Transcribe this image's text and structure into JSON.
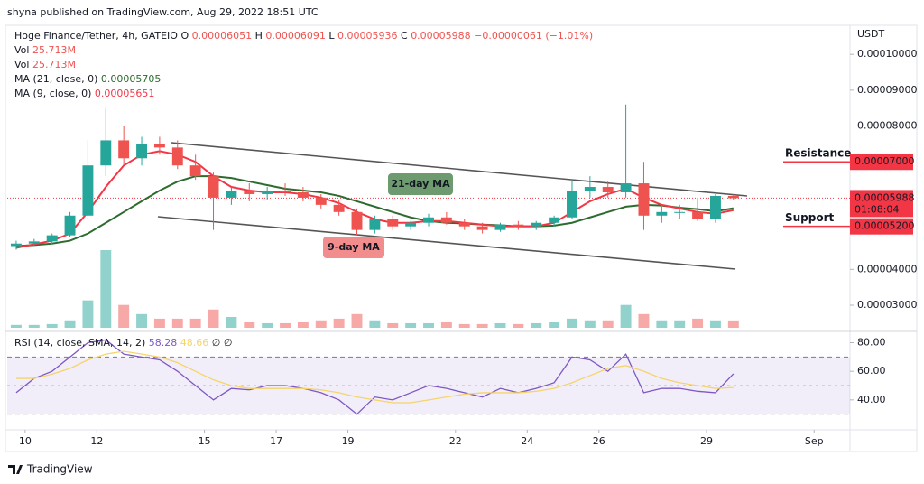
{
  "header": {
    "publisher": "shyna published on TradingView.com, Aug 29, 2022 18:51 UTC"
  },
  "footer": {
    "brand": "TradingView"
  },
  "chart_data": {
    "type": "candlestick",
    "symbol": "Hoge Finance/Tether, 4h, GATEIO",
    "ohlc_legend": [
      {
        "key": "O",
        "text": "0.00006051"
      },
      {
        "key": "H",
        "text": "0.00006091"
      },
      {
        "key": "L",
        "text": "0.00005936"
      },
      {
        "key": "C",
        "text": "0.00005988"
      }
    ],
    "change": "−0.00000061 (−1.01%)",
    "axis_unit": "USDT",
    "up_color": "#26a69a",
    "down_color": "#ef5350",
    "x": [
      9.75,
      10.25,
      10.75,
      11.25,
      11.75,
      12.25,
      12.75,
      13.25,
      13.75,
      14.25,
      14.75,
      15.25,
      15.75,
      16.25,
      16.75,
      17.25,
      17.75,
      18.25,
      18.75,
      19.25,
      19.75,
      20.25,
      20.75,
      21.25,
      21.75,
      22.25,
      22.75,
      23.25,
      23.75,
      24.25,
      24.75,
      25.25,
      25.75,
      26.25,
      26.75,
      27.25,
      27.75,
      28.25,
      28.75,
      29.25,
      29.75
    ],
    "open": [
      4.65e-05,
      4.72e-05,
      4.78e-05,
      4.95e-05,
      5.5e-05,
      6.9e-05,
      7.6e-05,
      7.1e-05,
      7.5e-05,
      7.4e-05,
      6.9e-05,
      6.6e-05,
      6e-05,
      6.2e-05,
      6.1e-05,
      6.2e-05,
      6.15e-05,
      6e-05,
      5.8e-05,
      5.6e-05,
      5.1e-05,
      5.4e-05,
      5.2e-05,
      5.3e-05,
      5.45e-05,
      5.3e-05,
      5.2e-05,
      5.1e-05,
      5.25e-05,
      5.2e-05,
      5.3e-05,
      5.45e-05,
      6.2e-05,
      6.3e-05,
      6.15e-05,
      6.4e-05,
      5.5e-05,
      5.6e-05,
      5.6e-05,
      5.4e-05,
      6.051e-05
    ],
    "high": [
      4.8e-05,
      4.85e-05,
      5e-05,
      5.6e-05,
      7.6e-05,
      8.5e-05,
      8e-05,
      7.7e-05,
      7.7e-05,
      7.6e-05,
      7.2e-05,
      6.7e-05,
      6.3e-05,
      6.4e-05,
      6.3e-05,
      6.4e-05,
      6.3e-05,
      6.1e-05,
      5.95e-05,
      5.7e-05,
      5.5e-05,
      5.5e-05,
      5.35e-05,
      5.55e-05,
      5.6e-05,
      5.4e-05,
      5.3e-05,
      5.3e-05,
      5.35e-05,
      5.35e-05,
      5.5e-05,
      6.5e-05,
      6.6e-05,
      6.45e-05,
      8.6e-05,
      7e-05,
      5.8e-05,
      5.8e-05,
      6e-05,
      6.1e-05,
      6.091e-05
    ],
    "low": [
      4.55e-05,
      4.65e-05,
      4.7e-05,
      4.9e-05,
      5.4e-05,
      6.6e-05,
      6.9e-05,
      6.9e-05,
      7.2e-05,
      6.8e-05,
      6.5e-05,
      5.1e-05,
      5.8e-05,
      5.9e-05,
      5.95e-05,
      6.05e-05,
      5.9e-05,
      5.7e-05,
      5.5e-05,
      4.95e-05,
      5e-05,
      5.1e-05,
      5.1e-05,
      5.2e-05,
      5.25e-05,
      5.1e-05,
      5e-05,
      5.05e-05,
      5.1e-05,
      5.1e-05,
      5.2e-05,
      5.4e-05,
      6e-05,
      6e-05,
      6e-05,
      5.1e-05,
      5.3e-05,
      5.4e-05,
      5.35e-05,
      5.3e-05,
      5.936e-05
    ],
    "close": [
      4.72e-05,
      4.78e-05,
      4.95e-05,
      5.5e-05,
      6.9e-05,
      7.6e-05,
      7.1e-05,
      7.5e-05,
      7.4e-05,
      6.9e-05,
      6.6e-05,
      6e-05,
      6.2e-05,
      6.1e-05,
      6.2e-05,
      6.15e-05,
      6e-05,
      5.8e-05,
      5.6e-05,
      5.1e-05,
      5.4e-05,
      5.2e-05,
      5.3e-05,
      5.45e-05,
      5.3e-05,
      5.2e-05,
      5.1e-05,
      5.25e-05,
      5.2e-05,
      5.3e-05,
      5.45e-05,
      6.2e-05,
      6.3e-05,
      6.15e-05,
      6.4e-05,
      5.5e-05,
      5.6e-05,
      5.6e-05,
      5.4e-05,
      6.05e-05,
      5.988e-05
    ],
    "xlim": [
      9.5,
      33
    ],
    "xticks": [
      10,
      12,
      15,
      17,
      19,
      22,
      24,
      26,
      29,
      {
        "value": 32,
        "label": "Sep"
      }
    ],
    "ylim": [
      2.32e-05,
      0.0001076
    ],
    "yticks": [
      {
        "value": 0.0001,
        "label": "0.00010000"
      },
      {
        "value": 9e-05,
        "label": "0.00009000"
      },
      {
        "value": 8e-05,
        "label": "0.00008000"
      },
      {
        "value": 4e-05,
        "label": "0.00004000"
      },
      {
        "value": 3e-05,
        "label": "0.00003000"
      }
    ],
    "last_price": {
      "value": 5.988e-05,
      "label": "0.00005988",
      "countdown": "01:08:04",
      "color": "#f23645"
    },
    "levels": [
      {
        "name": "Resistance",
        "value": 7e-05,
        "label": "0.00007000",
        "color": "#f23645"
      },
      {
        "name": "Support",
        "value": 5.2e-05,
        "label": "0.00005200",
        "color": "#089981"
      }
    ],
    "series": [
      {
        "name": "MA (21, close, 0)",
        "legend_value": "0.00005705",
        "color": "#2e6b2f",
        "values": [
          4.65e-05,
          4.68e-05,
          4.72e-05,
          4.8e-05,
          5e-05,
          5.3e-05,
          5.6e-05,
          5.9e-05,
          6.2e-05,
          6.45e-05,
          6.6e-05,
          6.6e-05,
          6.55e-05,
          6.45e-05,
          6.35e-05,
          6.25e-05,
          6.2e-05,
          6.15e-05,
          6.05e-05,
          5.9e-05,
          5.75e-05,
          5.6e-05,
          5.45e-05,
          5.35e-05,
          5.3e-05,
          5.28e-05,
          5.25e-05,
          5.23e-05,
          5.2e-05,
          5.2e-05,
          5.22e-05,
          5.3e-05,
          5.45e-05,
          5.6e-05,
          5.75e-05,
          5.8e-05,
          5.78e-05,
          5.72e-05,
          5.68e-05,
          5.62e-05,
          5.705e-05
        ]
      },
      {
        "name": "MA (9, close, 0)",
        "legend_value": "0.00005651",
        "color": "#f23645",
        "values": [
          4.6e-05,
          4.7e-05,
          4.8e-05,
          5e-05,
          5.6e-05,
          6.3e-05,
          6.9e-05,
          7.2e-05,
          7.3e-05,
          7.2e-05,
          7e-05,
          6.6e-05,
          6.3e-05,
          6.2e-05,
          6.15e-05,
          6.15e-05,
          6.1e-05,
          6e-05,
          5.85e-05,
          5.6e-05,
          5.4e-05,
          5.3e-05,
          5.3e-05,
          5.35e-05,
          5.35e-05,
          5.3e-05,
          5.25e-05,
          5.2e-05,
          5.2e-05,
          5.2e-05,
          5.3e-05,
          5.6e-05,
          5.9e-05,
          6.1e-05,
          6.25e-05,
          6e-05,
          5.8e-05,
          5.7e-05,
          5.6e-05,
          5.55e-05,
          5.651e-05
        ]
      }
    ],
    "annotations": [
      {
        "text": "21-day MA",
        "color": "#6e9a6f"
      },
      {
        "text": "9-day MA",
        "color": "#f28d8d"
      }
    ],
    "volume_legend": [
      {
        "name": "Vol",
        "text": "25.713M"
      },
      {
        "name": "Vol",
        "text": "25.713M"
      }
    ],
    "volume": [
      10,
      10,
      13,
      26,
      96,
      272,
      80,
      48,
      32,
      32,
      32,
      64,
      38,
      19,
      16,
      16,
      19,
      26,
      32,
      48,
      26,
      16,
      16,
      16,
      19,
      13,
      13,
      16,
      13,
      16,
      19,
      32,
      26,
      26,
      80,
      48,
      26,
      26,
      32,
      26,
      25.713
    ],
    "rsi": {
      "legend": "RSI (14, close, SMA, 14, 2)",
      "extras": [
        "∅",
        "∅"
      ],
      "ylim": [
        26,
        86
      ],
      "yticks": [
        {
          "value": 80,
          "label": "80.00"
        },
        {
          "value": 60,
          "label": "60.00"
        },
        {
          "value": 40,
          "label": "40.00"
        }
      ],
      "band": [
        30,
        70
      ],
      "series": [
        {
          "legend_value": "58.28",
          "color": "#7e57c2",
          "values": [
            45,
            55,
            60,
            70,
            80,
            82,
            72,
            70,
            68,
            60,
            50,
            40,
            48,
            47,
            50,
            50,
            48,
            45,
            40,
            30,
            42,
            40,
            45,
            50,
            48,
            45,
            42,
            48,
            45,
            48,
            52,
            70,
            68,
            60,
            72,
            45,
            48,
            48,
            46,
            45,
            58.28
          ]
        },
        {
          "legend_value": "48.66",
          "color": "#f5d46a",
          "values": [
            55,
            55,
            58,
            62,
            68,
            72,
            74,
            72,
            70,
            66,
            60,
            54,
            50,
            48,
            48,
            48,
            48,
            47,
            45,
            42,
            40,
            38,
            38,
            40,
            42,
            44,
            45,
            45,
            45,
            46,
            48,
            52,
            57,
            62,
            64,
            60,
            55,
            52,
            50,
            48,
            48.66
          ]
        }
      ]
    }
  }
}
